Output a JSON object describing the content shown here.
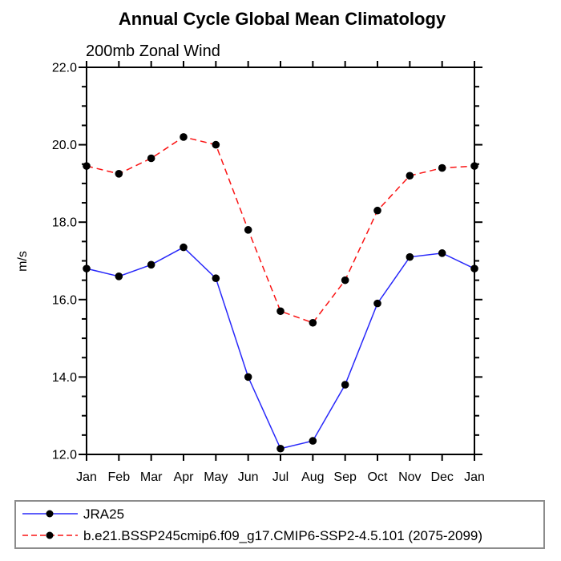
{
  "colors": {
    "background": "#ffffff",
    "axis": "#000000",
    "text": "#000000",
    "legend_border": "#8c8c8c",
    "series_blue": "#2828fa",
    "series_red": "#fa1414",
    "marker": "#000000"
  },
  "chart_data": {
    "type": "line",
    "title": "Annual Cycle Global Mean Climatology",
    "subtitle": "200mb Zonal Wind",
    "ylabel": "m/s",
    "xlabel": "",
    "categories": [
      "Jan",
      "Feb",
      "Mar",
      "Apr",
      "May",
      "Jun",
      "Jul",
      "Aug",
      "Sep",
      "Oct",
      "Nov",
      "Dec",
      "Jan"
    ],
    "ylim": [
      12.0,
      22.0
    ],
    "ytick_major_step": 2.0,
    "ytick_minor_step": 0.5,
    "ytick_labels": [
      "12.0",
      "14.0",
      "16.0",
      "18.0",
      "20.0",
      "22.0"
    ],
    "grid": false,
    "legend_position": "bottom-left-box",
    "series": [
      {
        "name": "JRA25",
        "color": "#2828fa",
        "line_style": "solid",
        "marker": "filled-circle",
        "marker_color": "#000000",
        "values": [
          16.8,
          16.6,
          16.9,
          17.35,
          16.55,
          14.0,
          12.15,
          12.35,
          13.8,
          15.9,
          17.1,
          17.2,
          16.8
        ]
      },
      {
        "name": "b.e21.BSSP245cmip6.f09_g17.CMIP6-SSP2-4.5.101 (2075-2099)",
        "color": "#fa1414",
        "line_style": "dashed",
        "marker": "filled-circle",
        "marker_color": "#000000",
        "values": [
          19.45,
          19.25,
          19.65,
          20.2,
          20.0,
          17.8,
          15.7,
          15.4,
          16.5,
          18.3,
          19.2,
          19.4,
          19.45
        ]
      }
    ]
  }
}
